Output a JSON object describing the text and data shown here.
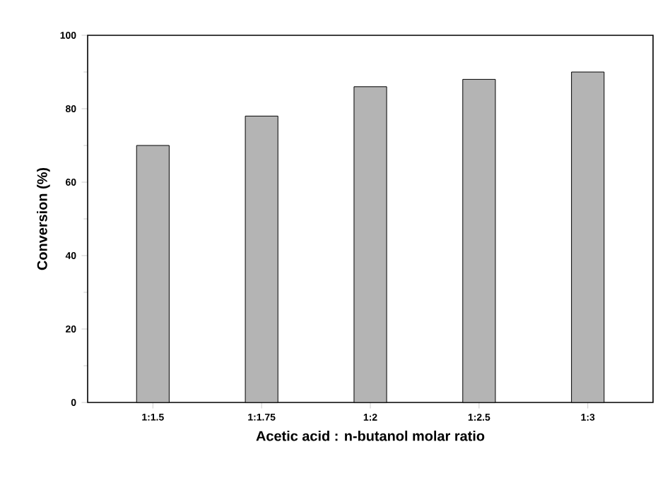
{
  "chart_data": {
    "type": "bar",
    "xlabel": "Acetic acid : n-butanol molar ratio",
    "ylabel": "Conversion (%)",
    "categories": [
      "1:1.5",
      "1:1.75",
      "1:2",
      "1:2.5",
      "1:3"
    ],
    "values": [
      70,
      78,
      86,
      88,
      90
    ],
    "color": "#b4b4b4",
    "ylim": [
      0,
      100
    ],
    "yticks": [
      0,
      20,
      40,
      60,
      80,
      100
    ],
    "grid": false
  }
}
